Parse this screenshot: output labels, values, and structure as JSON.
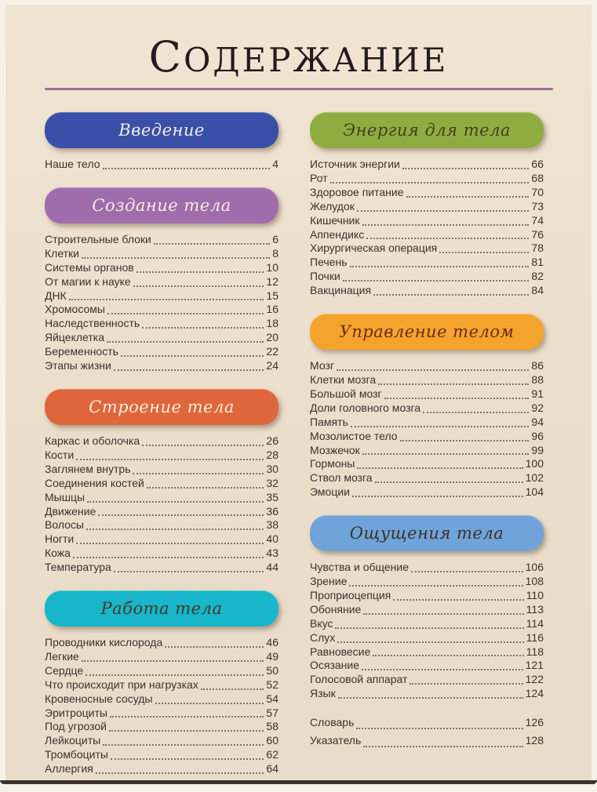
{
  "page": {
    "title": "СОДЕРЖАНИЕ",
    "rule_color": "#9c7090",
    "background_color": "#ecdfcd",
    "entry_text_color": "#3b322c"
  },
  "columns": [
    {
      "sections": [
        {
          "banner": {
            "label": "Введение",
            "bg": "#3a50a8",
            "fg": "#f2ecdf"
          },
          "entries": [
            {
              "label": "Наше тело",
              "page": "4"
            }
          ]
        },
        {
          "banner": {
            "label": "Создание тела",
            "bg": "#9f6cac",
            "fg": "#f2ecdf"
          },
          "entries": [
            {
              "label": "Строительные блоки",
              "page": "6"
            },
            {
              "label": "Клетки",
              "page": "8"
            },
            {
              "label": "Системы органов",
              "page": "10"
            },
            {
              "label": "От магии к науке",
              "page": "12"
            },
            {
              "label": "ДНК",
              "page": "15"
            },
            {
              "label": "Хромосомы",
              "page": "16"
            },
            {
              "label": "Наследственность",
              "page": "18"
            },
            {
              "label": "Яйцеклетка",
              "page": "20"
            },
            {
              "label": "Беременность",
              "page": "22"
            },
            {
              "label": "Этапы жизни",
              "page": "24"
            }
          ]
        },
        {
          "banner": {
            "label": "Строение тела",
            "bg": "#df663c",
            "fg": "#f7ecda"
          },
          "entries": [
            {
              "label": "Каркас и оболочка",
              "page": "26"
            },
            {
              "label": "Кости",
              "page": "28"
            },
            {
              "label": "Заглянем внутрь",
              "page": "30"
            },
            {
              "label": "Соединения костей",
              "page": "32"
            },
            {
              "label": "Мышцы",
              "page": "35"
            },
            {
              "label": "Движение",
              "page": "36"
            },
            {
              "label": "Волосы",
              "page": "38"
            },
            {
              "label": "Ногти",
              "page": "40"
            },
            {
              "label": "Кожа",
              "page": "43"
            },
            {
              "label": "Температура",
              "page": "44"
            }
          ]
        },
        {
          "banner": {
            "label": "Работа тела",
            "bg": "#17b6ca",
            "fg": "#46392a"
          },
          "entries": [
            {
              "label": "Проводники кислорода",
              "page": "46"
            },
            {
              "label": "Легкие",
              "page": "49"
            },
            {
              "label": "Сердце",
              "page": "50"
            },
            {
              "label": "Что происходит при нагрузках",
              "page": "52"
            },
            {
              "label": "Кровеносные сосуды",
              "page": "54"
            },
            {
              "label": "Эритроциты",
              "page": "57"
            },
            {
              "label": "Под угрозой",
              "page": "58"
            },
            {
              "label": "Лейкоциты",
              "page": "60"
            },
            {
              "label": "Тромбоциты",
              "page": "62"
            },
            {
              "label": "Аллергия",
              "page": "64"
            }
          ]
        }
      ]
    },
    {
      "sections": [
        {
          "banner": {
            "label": "Энергия для тела",
            "bg": "#8ead40",
            "fg": "#453e21"
          },
          "entries": [
            {
              "label": "Источник энергии",
              "page": "66"
            },
            {
              "label": "Рот",
              "page": "68"
            },
            {
              "label": "Здоровое питание",
              "page": "70"
            },
            {
              "label": "Желудок",
              "page": "73"
            },
            {
              "label": "Кишечник",
              "page": "74"
            },
            {
              "label": "Аппендикс",
              "page": "76"
            },
            {
              "label": "Хирургическая операция",
              "page": "78"
            },
            {
              "label": "Печень",
              "page": "81"
            },
            {
              "label": "Почки",
              "page": "82"
            },
            {
              "label": "Вакцинация",
              "page": "84"
            }
          ]
        },
        {
          "banner": {
            "label": "Управление телом",
            "bg": "#f4a42c",
            "fg": "#6e2b1c"
          },
          "entries": [
            {
              "label": "Мозг",
              "page": "86"
            },
            {
              "label": "Клетки мозга",
              "page": "88"
            },
            {
              "label": "Большой мозг",
              "page": "91"
            },
            {
              "label": "Доли головного мозга",
              "page": "92"
            },
            {
              "label": "Память",
              "page": "94"
            },
            {
              "label": "Мозолистое тело",
              "page": "96"
            },
            {
              "label": "Мозжечок",
              "page": "99"
            },
            {
              "label": "Гормоны",
              "page": "100"
            },
            {
              "label": "Ствол мозга",
              "page": "102"
            },
            {
              "label": "Эмоции",
              "page": "104"
            }
          ]
        },
        {
          "banner": {
            "label": "Ощущения тела",
            "bg": "#70a3d9",
            "fg": "#3a3326"
          },
          "entries": [
            {
              "label": "Чувства и общение",
              "page": "106"
            },
            {
              "label": "Зрение",
              "page": "108"
            },
            {
              "label": "Проприоцепция",
              "page": "110"
            },
            {
              "label": "Обоняние",
              "page": "113"
            },
            {
              "label": "Вкус",
              "page": "114"
            },
            {
              "label": "Слух",
              "page": "116"
            },
            {
              "label": "Равновесие",
              "page": "118"
            },
            {
              "label": "Осязание",
              "page": "121"
            },
            {
              "label": "Голосовой аппарат",
              "page": "122"
            },
            {
              "label": "Язык",
              "page": "124"
            }
          ]
        },
        {
          "banner": null,
          "entries": [
            {
              "label": "Словарь",
              "page": "126"
            },
            {
              "label": "Указатель",
              "page": "128"
            }
          ]
        }
      ]
    }
  ]
}
